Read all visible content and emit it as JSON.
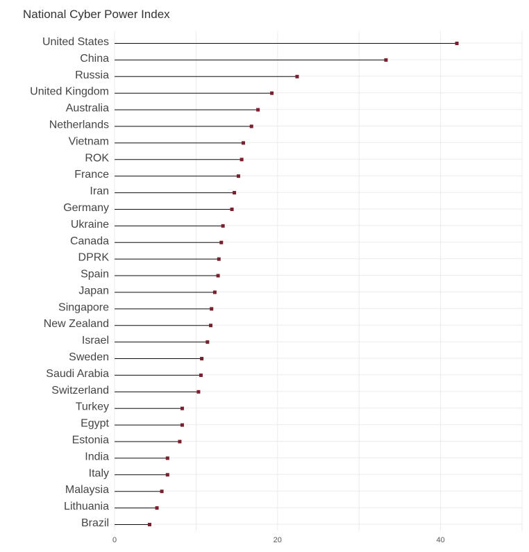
{
  "chart_data": {
    "type": "lollipop",
    "title": "National Cyber Power Index",
    "xlabel": "",
    "ylabel": "",
    "xlim": [
      0,
      50
    ],
    "xticks": [
      0,
      10,
      20,
      30,
      40,
      50
    ],
    "xtick_labels": [
      "0",
      "",
      "20",
      "",
      "40",
      ""
    ],
    "grid": true,
    "colors": {
      "marker": "#7a1f2e",
      "stem": "#111111",
      "grid": "#ebebeb"
    },
    "categories": [
      "United States",
      "China",
      "Russia",
      "United Kingdom",
      "Australia",
      "Netherlands",
      "Vietnam",
      "ROK",
      "France",
      "Iran",
      "Germany",
      "Ukraine",
      "Canada",
      "DPRK",
      "Spain",
      "Japan",
      "Singapore",
      "New Zealand",
      "Israel",
      "Sweden",
      "Saudi Arabia",
      "Switzerland",
      "Turkey",
      "Egypt",
      "Estonia",
      "India",
      "Italy",
      "Malaysia",
      "Lithuania",
      "Brazil"
    ],
    "values": [
      42.0,
      33.3,
      22.4,
      19.3,
      17.6,
      16.8,
      15.8,
      15.6,
      15.2,
      14.7,
      14.4,
      13.3,
      13.1,
      12.8,
      12.7,
      12.3,
      11.9,
      11.8,
      11.4,
      10.7,
      10.6,
      10.3,
      8.3,
      8.3,
      8.0,
      6.5,
      6.5,
      5.8,
      5.2,
      4.3
    ]
  }
}
